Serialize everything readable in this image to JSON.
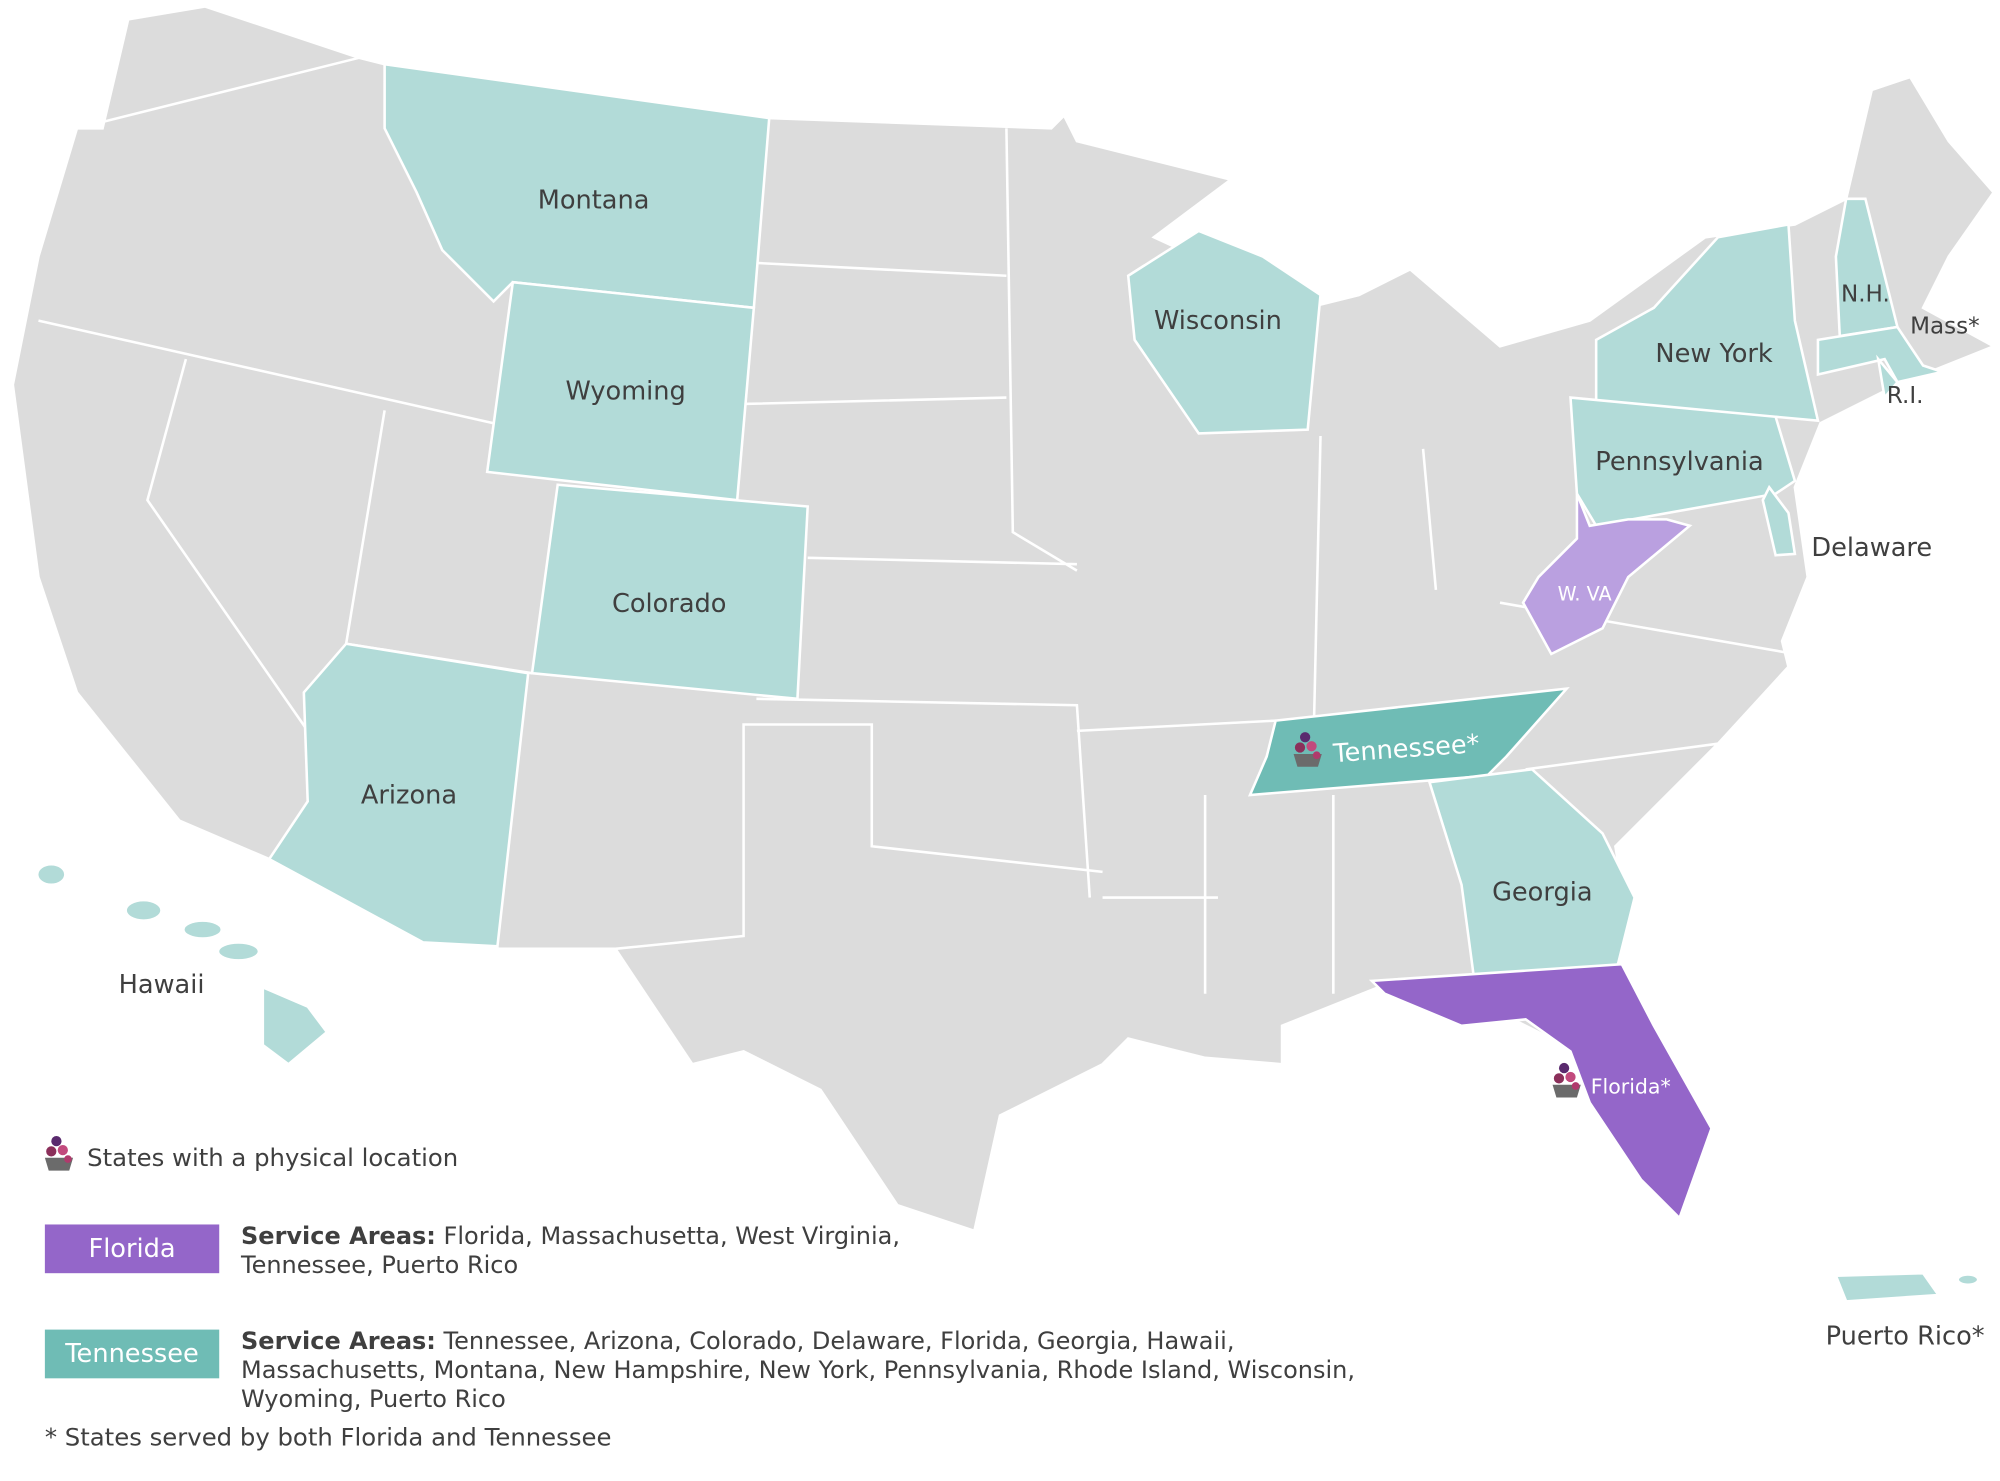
{
  "map": {
    "states": [
      {
        "label": "Montana"
      },
      {
        "label": "Wyoming"
      },
      {
        "label": "Colorado"
      },
      {
        "label": "Arizona"
      },
      {
        "label": "Wisconsin"
      },
      {
        "label": "New York"
      },
      {
        "label": "Pennsylvania"
      },
      {
        "label": "N.H."
      },
      {
        "label": "Mass*"
      },
      {
        "label": "R.I."
      },
      {
        "label": "Delaware"
      },
      {
        "label": "W. VA"
      },
      {
        "label": "Tennessee*"
      },
      {
        "label": "Georgia"
      },
      {
        "label": "Florida*"
      },
      {
        "label": "Hawaii"
      },
      {
        "label": "Puerto Rico*"
      }
    ]
  },
  "legend": {
    "location_note": "States with a physical location",
    "florida": {
      "label": "Florida",
      "heading": "Service Areas:",
      "text": "Florida, Massachusetta, West Virginia, Tennessee, Puerto Rico"
    },
    "tennessee": {
      "label": "Tennessee",
      "heading": "Service Areas:",
      "text": "Tennessee, Arizona, Colorado, Delaware, Florida, Georgia, Hawaii, Massachusetts, Montana, New Hampshire, New York, Pennsylvania, Rhode Island, Wisconsin, Wyoming, Puerto Rico"
    }
  },
  "footnote": "* States served by both Florida and Tennessee"
}
